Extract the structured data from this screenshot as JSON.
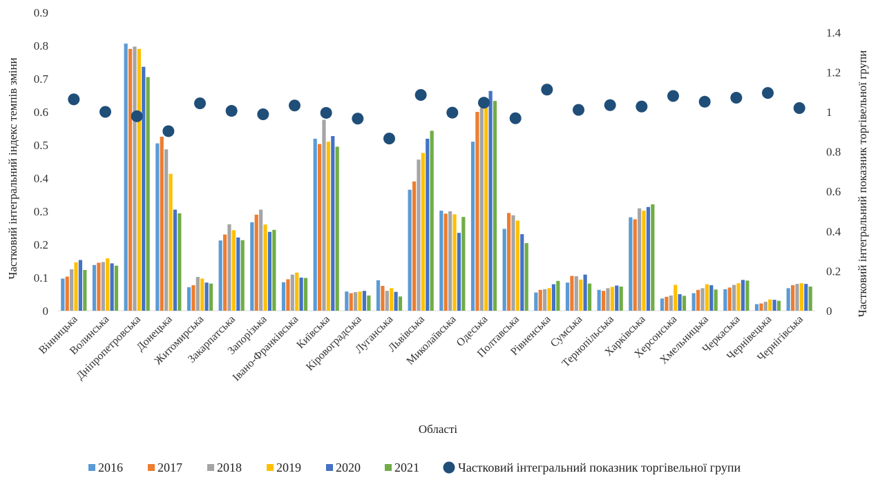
{
  "chart_data": {
    "type": "bar",
    "xlabel": "Області",
    "ylabel": "Частковий інтегральний індекс темпів зміни",
    "y2label": "Частковий інтегральний показник торгівельної групи",
    "ylim": [
      0,
      0.9
    ],
    "y2lim": [
      0,
      1.5
    ],
    "yticks": [
      "0",
      "0.1",
      "0.2",
      "0.3",
      "0.4",
      "0.5",
      "0.6",
      "0.7",
      "0.8",
      "0.9"
    ],
    "y2ticks": [
      "0",
      "0.2",
      "0.4",
      "0.6",
      "0.8",
      "1",
      "1.2",
      "1.4"
    ],
    "y2tick_values": [
      0,
      0.2,
      0.4,
      0.6,
      0.8,
      1.0,
      1.2,
      1.4
    ],
    "categories": [
      "Вінницька",
      "Волинська",
      "Дніпропетровська",
      "Донецька",
      "Житомирська",
      "Закарпатська",
      "Запорізька",
      "Івано-Франківська",
      "Київська",
      "Кіровоградська",
      "Луганська",
      "Львівська",
      "Миколаївська",
      "Одеська",
      "Полтавська",
      "Рівненська",
      "Сумська",
      "Тернопільська",
      "Харківська",
      "Херсонська",
      "Хмельницька",
      "Черкаська",
      "Чернівецька",
      "Чернігівська"
    ],
    "series": [
      {
        "name": "2016",
        "color": "#5b9bd5",
        "values": [
          0.097,
          0.138,
          0.806,
          0.505,
          0.071,
          0.212,
          0.267,
          0.086,
          0.519,
          0.058,
          0.092,
          0.365,
          0.302,
          0.51,
          0.247,
          0.055,
          0.085,
          0.063,
          0.282,
          0.037,
          0.053,
          0.065,
          0.02,
          0.068
        ]
      },
      {
        "name": "2017",
        "color": "#ed7d31",
        "values": [
          0.103,
          0.145,
          0.79,
          0.525,
          0.077,
          0.23,
          0.29,
          0.095,
          0.503,
          0.053,
          0.075,
          0.39,
          0.293,
          0.6,
          0.295,
          0.063,
          0.105,
          0.06,
          0.276,
          0.042,
          0.063,
          0.07,
          0.022,
          0.077
        ]
      },
      {
        "name": "2018",
        "color": "#a5a5a5",
        "values": [
          0.125,
          0.147,
          0.797,
          0.487,
          0.102,
          0.261,
          0.305,
          0.109,
          0.576,
          0.056,
          0.06,
          0.456,
          0.3,
          0.612,
          0.288,
          0.065,
          0.104,
          0.068,
          0.309,
          0.046,
          0.068,
          0.078,
          0.027,
          0.081
        ]
      },
      {
        "name": "2019",
        "color": "#ffc000",
        "values": [
          0.146,
          0.158,
          0.79,
          0.413,
          0.097,
          0.243,
          0.26,
          0.115,
          0.51,
          0.058,
          0.068,
          0.476,
          0.291,
          0.622,
          0.272,
          0.068,
          0.094,
          0.072,
          0.302,
          0.078,
          0.08,
          0.083,
          0.034,
          0.083
        ]
      },
      {
        "name": "2020",
        "color": "#4472c4",
        "values": [
          0.153,
          0.143,
          0.736,
          0.305,
          0.085,
          0.221,
          0.238,
          0.1,
          0.527,
          0.06,
          0.057,
          0.519,
          0.235,
          0.663,
          0.231,
          0.08,
          0.109,
          0.076,
          0.313,
          0.05,
          0.077,
          0.093,
          0.033,
          0.081
        ]
      },
      {
        "name": "2021",
        "color": "#70ad47",
        "values": [
          0.123,
          0.136,
          0.705,
          0.294,
          0.082,
          0.213,
          0.244,
          0.099,
          0.495,
          0.046,
          0.043,
          0.543,
          0.283,
          0.633,
          0.204,
          0.09,
          0.082,
          0.073,
          0.321,
          0.045,
          0.064,
          0.091,
          0.03,
          0.073
        ]
      }
    ],
    "line_series": {
      "name": "Частковий інтегральний показник торгівельної групи",
      "color": "#1f4e79",
      "axis": "right",
      "values": [
        1.063,
        1.0,
        0.978,
        0.903,
        1.043,
        1.005,
        0.988,
        1.032,
        0.995,
        0.966,
        0.866,
        1.085,
        0.996,
        1.046,
        0.968,
        1.112,
        1.01,
        1.034,
        1.027,
        1.08,
        1.051,
        1.071,
        1.095,
        1.019
      ]
    },
    "legend_position": "bottom",
    "grid": false
  }
}
